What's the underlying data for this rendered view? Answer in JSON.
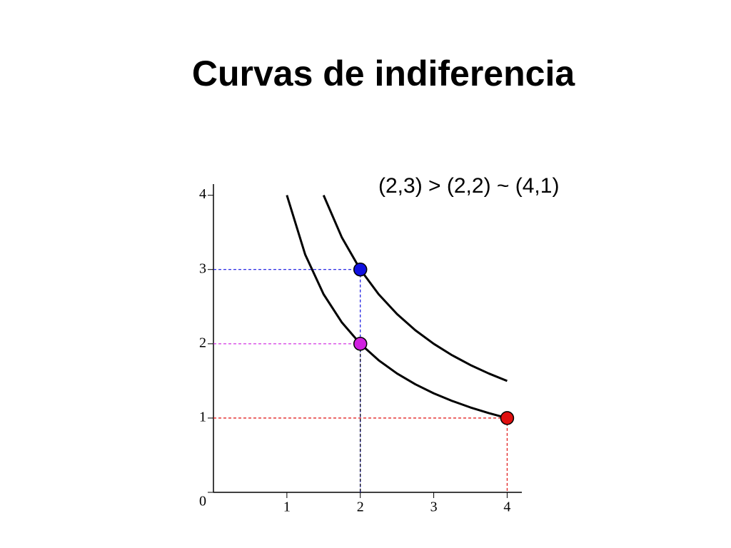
{
  "title": "Curvas de indiferencia",
  "chart_data": {
    "type": "line",
    "annotation": "(2,3) > (2,2) ~ (4,1)",
    "xlim": [
      0,
      4.2
    ],
    "ylim": [
      0,
      4.15
    ],
    "xticks": [
      1,
      2,
      3,
      4
    ],
    "yticks": [
      0,
      1,
      2,
      3,
      4
    ],
    "series": [
      {
        "color": "#000000",
        "x": [
          1,
          1.25,
          1.5,
          1.75,
          2,
          2.25,
          2.5,
          2.75,
          3,
          3.25,
          3.5,
          3.75,
          4
        ],
        "values": [
          4,
          3.2,
          2.667,
          2.286,
          2,
          1.778,
          1.6,
          1.455,
          1.333,
          1.231,
          1.143,
          1.067,
          1
        ]
      },
      {
        "color": "#000000",
        "x": [
          1.5,
          1.75,
          2,
          2.25,
          2.5,
          2.75,
          3,
          3.25,
          3.5,
          3.75,
          4
        ],
        "values": [
          4,
          3.429,
          3,
          2.667,
          2.4,
          2.182,
          2,
          1.846,
          1.714,
          1.6,
          1.5
        ]
      }
    ],
    "points": [
      {
        "x": 2,
        "y": 3,
        "color": "#1010e0"
      },
      {
        "x": 2,
        "y": 2,
        "color": "#d020e0"
      },
      {
        "x": 4,
        "y": 1,
        "color": "#e01010"
      }
    ]
  }
}
